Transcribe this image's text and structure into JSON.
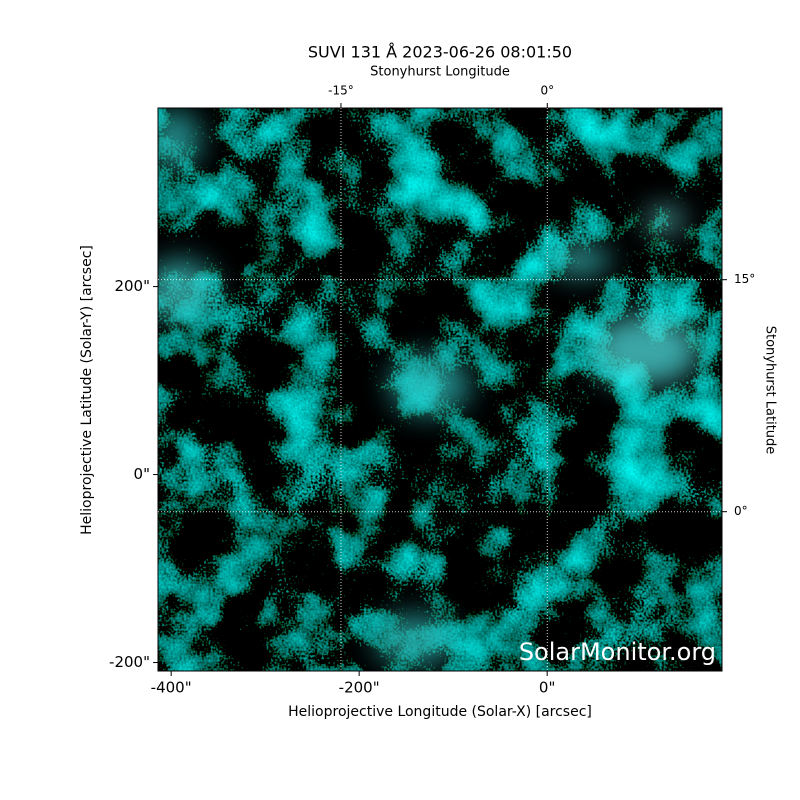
{
  "chart_data": {
    "type": "image",
    "title": "SUVI 131 Å 2023-06-26 08:01:50",
    "x_label": "Helioprojective Longitude (Solar-X) [arcsec]",
    "y_label": "Helioprojective Latitude (Solar-Y) [arcsec]",
    "x2_label": "Stonyhurst Longitude",
    "y2_label": "Stonyhurst Latitude",
    "watermark": "SolarMonitor.org",
    "xlim": [
      -414,
      186
    ],
    "ylim": [
      -209,
      390
    ],
    "xticks": [
      {
        "value": -400,
        "label": "-400\""
      },
      {
        "value": -200,
        "label": "-200\""
      },
      {
        "value": 0,
        "label": "0\""
      }
    ],
    "yticks": [
      {
        "value": -200,
        "label": "-200\""
      },
      {
        "value": 0,
        "label": "0\""
      },
      {
        "value": 200,
        "label": "200\""
      }
    ],
    "x2lim": [
      -28.3,
      12.7
    ],
    "y2lim": [
      -10.3,
      26.1
    ],
    "x2ticks": [
      {
        "value": -15,
        "label": "-15°"
      },
      {
        "value": 0,
        "label": "0°"
      }
    ],
    "y2ticks": [
      {
        "value": 0,
        "label": "0°"
      },
      {
        "value": 15,
        "label": "15°"
      }
    ],
    "grid": true
  }
}
